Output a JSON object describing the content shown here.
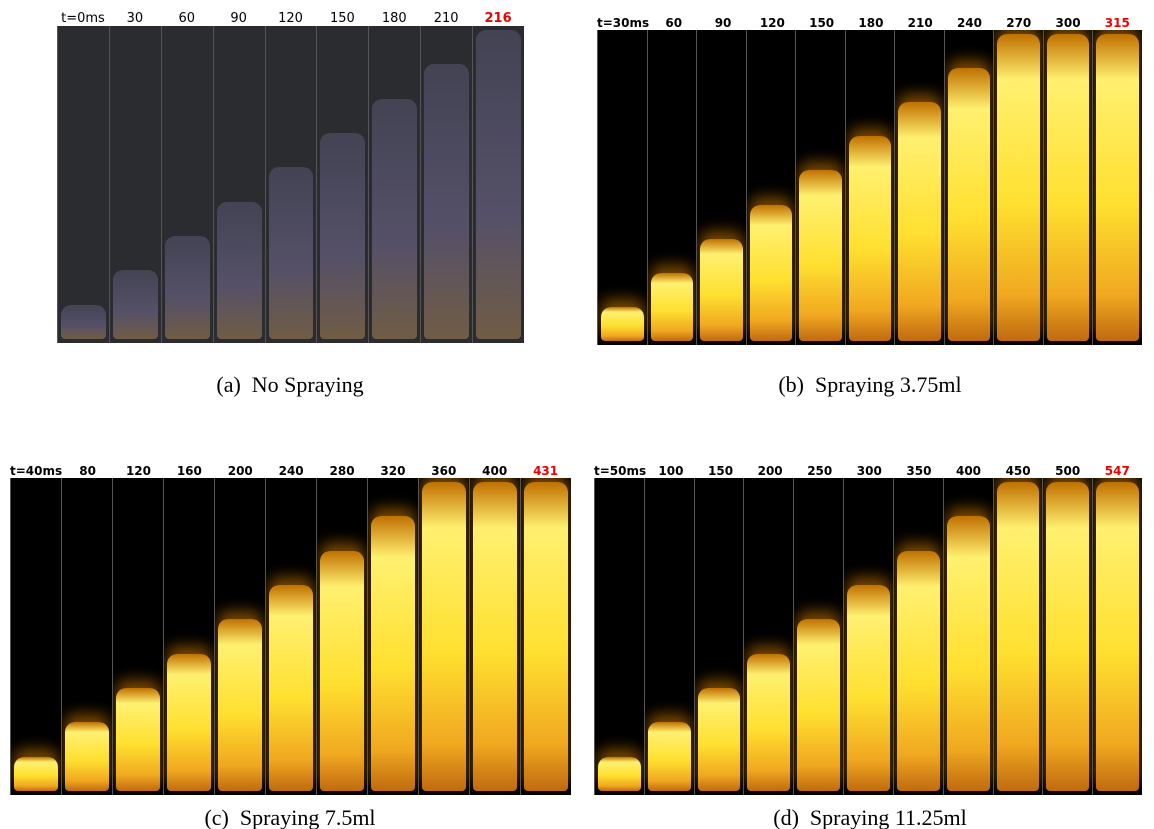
{
  "panels": [
    {
      "frames": [
        "t=0ms",
        "30",
        "60",
        "90",
        "120",
        "150",
        "180",
        "210",
        "216"
      ],
      "label": "(a)",
      "caption": "No Spraying"
    },
    {
      "frames": [
        "t=30ms",
        "60",
        "90",
        "120",
        "150",
        "180",
        "210",
        "240",
        "270",
        "300",
        "315"
      ],
      "label": "(b)",
      "caption": "Spraying 3.75ml"
    },
    {
      "frames": [
        "t=40ms",
        "80",
        "120",
        "160",
        "200",
        "240",
        "280",
        "320",
        "360",
        "400",
        "431"
      ],
      "label": "(c)",
      "caption": "Spraying 7.5ml"
    },
    {
      "frames": [
        "t=50ms",
        "100",
        "150",
        "200",
        "250",
        "300",
        "350",
        "400",
        "450",
        "500",
        "547"
      ],
      "label": "(d)",
      "caption": "Spraying 11.25ml"
    }
  ]
}
